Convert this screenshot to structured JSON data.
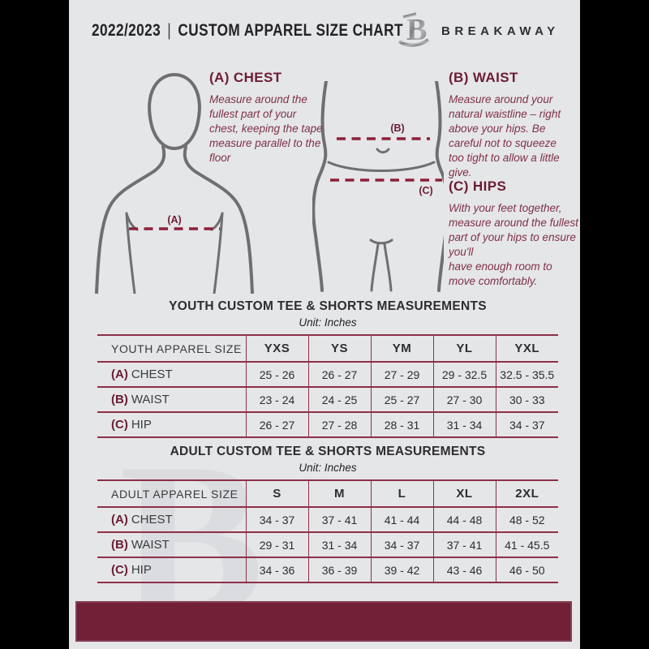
{
  "header": {
    "year": "2022/2023",
    "separator": "|",
    "title": "CUSTOM APPAREL SIZE CHART",
    "brand": "BREAKAWAY",
    "logo_icon": "breakaway-b-logo"
  },
  "watermark": {
    "letter": "B"
  },
  "guide": {
    "chest": {
      "label": "(A) CHEST",
      "text": "Measure around the fullest part of your chest, keeping the tape measure parallel to the floor"
    },
    "waist": {
      "label": "(B) WAIST",
      "text": "Measure around your natural waistline – right above your hips. Be careful not to squeeze too tight to allow a little give."
    },
    "hips": {
      "label": "(C) HIPS",
      "text_line1": "With your feet together, measure around the fullest part of your hips to ensure you'll",
      "text_line2": "have enough room to move comfortably."
    },
    "markers": {
      "a": "(A)",
      "b": "(B)",
      "c": "(C)"
    }
  },
  "tables": {
    "youth": {
      "title": "YOUTH CUSTOM TEE & SHORTS MEASUREMENTS",
      "unit": "Unit: Inches",
      "header": [
        "YOUTH APPAREL SIZE",
        "YXS",
        "YS",
        "YM",
        "YL",
        "YXL"
      ],
      "rows": [
        {
          "prefix": "(A)",
          "label": "CHEST",
          "values": [
            "25 - 26",
            "26 - 27",
            "27 - 29",
            "29 - 32.5",
            "32.5 - 35.5"
          ]
        },
        {
          "prefix": "(B)",
          "label": "WAIST",
          "values": [
            "23 - 24",
            "24 - 25",
            "25 - 27",
            "27 - 30",
            "30 - 33"
          ]
        },
        {
          "prefix": "(C)",
          "label": "HIP",
          "values": [
            "26 - 27",
            "27 - 28",
            "28 - 31",
            "31 - 34",
            "34 - 37"
          ]
        }
      ]
    },
    "adult": {
      "title": "ADULT CUSTOM TEE & SHORTS MEASUREMENTS",
      "unit": "Unit: Inches",
      "header": [
        "ADULT APPAREL SIZE",
        "S",
        "M",
        "L",
        "XL",
        "2XL"
      ],
      "rows": [
        {
          "prefix": "(A)",
          "label": "CHEST",
          "values": [
            "34 - 37",
            "37 - 41",
            "41 - 44",
            "44 - 48",
            "48 - 52"
          ]
        },
        {
          "prefix": "(B)",
          "label": "WAIST",
          "values": [
            "29 - 31",
            "31 - 34",
            "34 - 37",
            "37 - 41",
            "41 - 45.5"
          ]
        },
        {
          "prefix": "(C)",
          "label": "HIP",
          "values": [
            "34 - 36",
            "36 - 39",
            "39 - 42",
            "43 - 46",
            "46 - 50"
          ]
        }
      ]
    }
  },
  "colors": {
    "maroon_dark": "#6d1b34",
    "maroon_body": "#7e3048",
    "maroon_line": "#8e1f38",
    "table_border": "#8d3048",
    "footer_bar": "#721f38",
    "page_bg": "#e5e6e8",
    "figure_stroke": "#6f6f73",
    "watermark": "#dbdce0"
  }
}
